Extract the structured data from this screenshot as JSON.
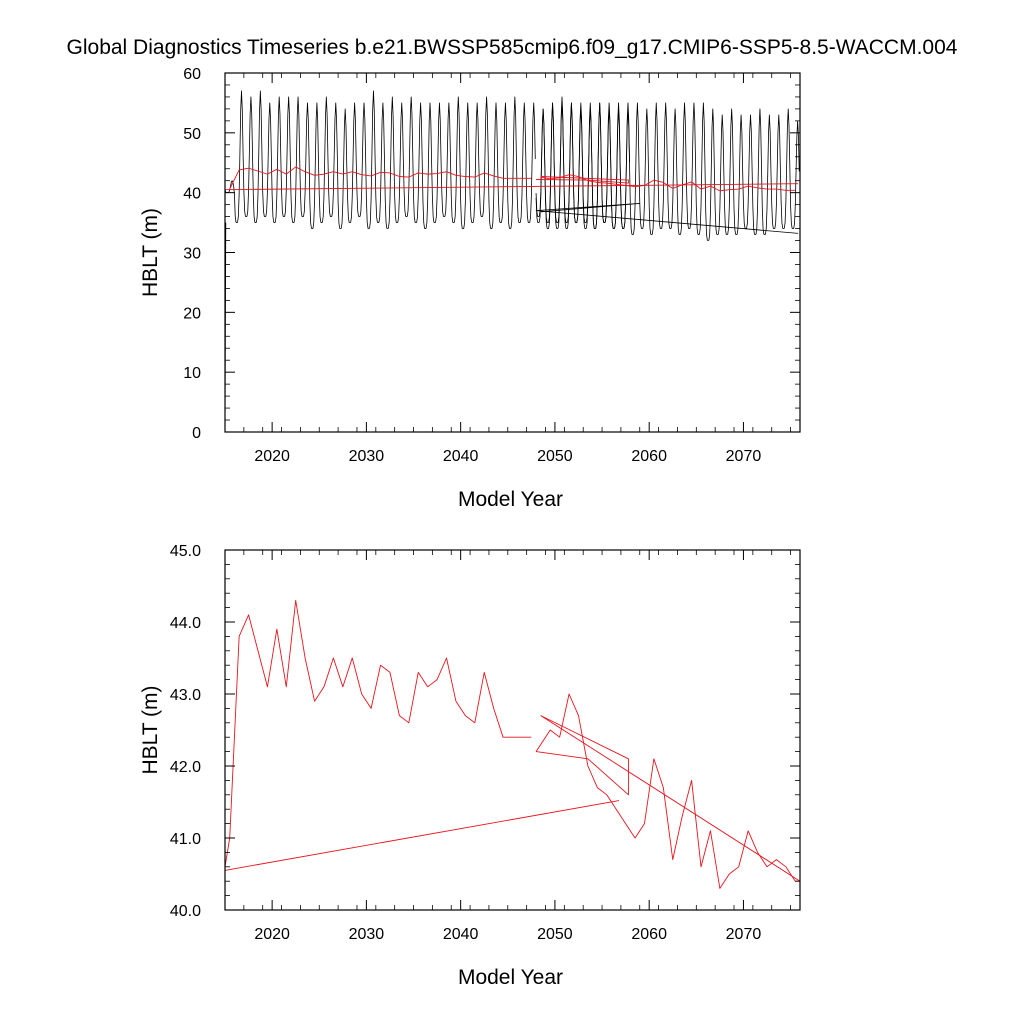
{
  "title": "Global Diagnostics Timeseries b.e21.BWSSP585cmip6.f09_g17.CMIP6-SSP5-8.5-WACCM.004",
  "colors": {
    "monthly": "#000000",
    "annual": "#e8141e",
    "axis": "#000000"
  },
  "chart_data": [
    {
      "type": "line",
      "xlabel": "Model Year",
      "ylabel": "HBLT (m)",
      "xlim": [
        2015,
        2076
      ],
      "ylim": [
        0,
        60
      ],
      "x_ticks": [
        2020,
        2030,
        2040,
        2050,
        2060,
        2070
      ],
      "x_tick_labels": [
        "2020",
        "2030",
        "2040",
        "2050",
        "2060",
        "2070"
      ],
      "y_ticks": [
        0,
        10,
        20,
        30,
        40,
        50,
        60
      ],
      "y_tick_labels": [
        "0",
        "10",
        "20",
        "30",
        "40",
        "50",
        "60"
      ],
      "grid": false,
      "series": [
        {
          "style": "monthly",
          "segments": [
            {
              "x_start": 2015.0,
              "x_step": 0.0833,
              "values": [
                0,
                35.0
              ]
            },
            {
              "x_start": 2015.0,
              "x_step": 0.0833,
              "values_pattern": "seasonal",
              "first_year": 2015,
              "last_year": 2047,
              "annual_max": [
                42,
                57,
                56,
                57,
                55,
                56,
                56,
                56,
                55,
                55,
                56,
                55,
                54,
                55,
                55,
                57,
                55,
                56,
                55,
                56,
                55,
                55,
                55,
                55,
                56,
                55,
                55,
                56,
                55,
                55,
                56,
                55,
                55
              ],
              "annual_min": [
                40,
                35,
                36,
                35,
                36,
                35,
                36,
                35,
                36,
                34,
                35,
                36,
                34,
                35,
                36,
                34,
                35,
                34,
                35,
                36,
                35,
                34,
                35,
                36,
                35,
                34,
                35,
                36,
                34,
                35,
                34,
                35,
                35
              ]
            },
            {
              "x_start": 2048.0,
              "x_step": 0.0833,
              "values_pattern": "seasonal",
              "first_year": 2048,
              "last_year": 2057,
              "annual_max": [
                54,
                55,
                56,
                55,
                55,
                54,
                55,
                55,
                54,
                55
              ],
              "annual_min": [
                36,
                35,
                34,
                35,
                35,
                35,
                34,
                35,
                34,
                34
              ]
            },
            {
              "x_start": 2048.0,
              "x_step": 0.0833,
              "values_pattern": "seasonal",
              "first_year": 2048,
              "last_year": 2075,
              "annual_max": [
                54,
                55,
                55,
                55,
                54,
                55,
                55,
                54,
                55,
                54,
                55,
                54,
                55,
                55,
                54,
                55,
                55,
                55,
                54,
                53,
                54,
                53,
                53,
                54,
                53,
                53,
                54,
                52
              ],
              "annual_min": [
                35,
                34,
                35,
                34,
                35,
                34,
                34,
                35,
                34,
                34,
                33,
                34,
                33,
                34,
                34,
                33,
                34,
                33,
                32,
                33,
                33,
                33,
                34,
                33,
                33,
                34,
                34,
                34
              ]
            },
            {
              "x": [
                2048.5,
                2059.0,
                2048.0,
                2075.8
              ],
              "y": [
                36.8,
                38.2,
                37.0,
                33.2
              ]
            }
          ]
        },
        {
          "style": "annual",
          "segments": [
            {
              "x": [
                2015.0,
                2075.8
              ],
              "y": [
                40.5,
                41.5
              ]
            },
            {
              "x": [
                2015.5,
                2016.5,
                2017.5,
                2018.5,
                2019.5,
                2020.5,
                2021.5,
                2022.5,
                2023.5,
                2024.5,
                2025.5,
                2026.5,
                2027.5,
                2028.5,
                2029.5,
                2030.5,
                2031.5,
                2032.5,
                2033.5,
                2034.5,
                2035.5,
                2036.5,
                2037.5,
                2038.5,
                2039.5,
                2040.5,
                2041.5,
                2042.5,
                2043.5,
                2044.5,
                2045.5,
                2046.5,
                2047.5
              ],
              "y": [
                40.6,
                43.8,
                44.1,
                43.6,
                43.1,
                43.9,
                43.1,
                44.3,
                43.5,
                42.9,
                43.1,
                43.5,
                43.1,
                43.5,
                43.0,
                42.8,
                43.4,
                43.3,
                42.7,
                42.6,
                43.3,
                43.1,
                43.2,
                43.5,
                42.9,
                42.7,
                42.6,
                43.3,
                42.8,
                42.4,
                42.4,
                42.4,
                42.4
              ]
            },
            {
              "x": [
                2048.5,
                2057.8,
                2057.8,
                2053.5,
                2048.0
              ],
              "y": [
                42.7,
                42.1,
                41.6,
                42.1,
                42.2
              ]
            },
            {
              "x": [
                2048.5,
                2049.5,
                2050.5,
                2051.5,
                2052.5,
                2053.5,
                2054.5,
                2055.5,
                2056.5,
                2057.5,
                2058.5,
                2059.5,
                2060.5,
                2061.5,
                2062.5,
                2063.5,
                2064.5,
                2065.5,
                2066.5,
                2067.5,
                2068.5,
                2069.5,
                2070.5,
                2071.5,
                2072.5,
                2073.5,
                2074.5,
                2075.5
              ],
              "y": [
                42.6,
                42.3,
                42.5,
                43.0,
                42.7,
                42.0,
                41.7,
                41.6,
                41.4,
                41.2,
                41.0,
                41.2,
                42.1,
                41.7,
                40.7,
                41.3,
                41.8,
                40.6,
                41.1,
                40.3,
                40.5,
                40.6,
                41.1,
                40.8,
                40.6,
                40.6,
                40.4,
                40.4
              ]
            }
          ]
        }
      ]
    },
    {
      "type": "line",
      "xlabel": "Model Year",
      "ylabel": "HBLT (m)",
      "xlim": [
        2015,
        2076
      ],
      "ylim": [
        40.0,
        45.0
      ],
      "x_ticks": [
        2020,
        2030,
        2040,
        2050,
        2060,
        2070
      ],
      "x_tick_labels": [
        "2020",
        "2030",
        "2040",
        "2050",
        "2060",
        "2070"
      ],
      "y_ticks": [
        40.0,
        41.0,
        42.0,
        43.0,
        44.0,
        45.0
      ],
      "y_tick_labels": [
        "40.0",
        "41.0",
        "42.0",
        "43.0",
        "44.0",
        "45.0"
      ],
      "grid": false,
      "series": [
        {
          "style": "annual",
          "segments": [
            {
              "x": [
                2015.0,
                2015.5,
                2016.5,
                2017.5,
                2018.5,
                2019.5,
                2020.5,
                2021.5,
                2022.5,
                2023.5,
                2024.5,
                2025.5,
                2026.5,
                2027.5,
                2028.5,
                2029.5,
                2030.5,
                2031.5,
                2032.5,
                2033.5,
                2034.5,
                2035.5,
                2036.5,
                2037.5,
                2038.5,
                2039.5,
                2040.5,
                2041.5,
                2042.5,
                2043.5,
                2044.5,
                2045.5,
                2046.5,
                2047.5
              ],
              "y": [
                40.6,
                41.0,
                43.8,
                44.1,
                43.6,
                43.1,
                43.9,
                43.1,
                44.3,
                43.5,
                42.9,
                43.1,
                43.5,
                43.1,
                43.5,
                43.0,
                42.8,
                43.4,
                43.3,
                42.7,
                42.6,
                43.3,
                43.1,
                43.2,
                43.5,
                42.9,
                42.7,
                42.6,
                43.3,
                42.8,
                42.4,
                42.4,
                42.4,
                42.4
              ]
            },
            {
              "x": [
                2015.0,
                2056.8
              ],
              "y": [
                40.55,
                41.52
              ]
            },
            {
              "x": [
                2048.5,
                2057.8,
                2057.8,
                2053.5,
                2048.0
              ],
              "y": [
                42.7,
                42.1,
                41.6,
                42.1,
                42.2
              ]
            },
            {
              "x": [
                2048.0,
                2049.5,
                2050.5,
                2051.5,
                2052.5,
                2053.5,
                2054.5,
                2055.5,
                2056.5,
                2057.5,
                2058.5,
                2059.5,
                2060.5,
                2061.5,
                2062.5,
                2063.5,
                2064.5,
                2065.5,
                2066.5,
                2067.5,
                2068.5,
                2069.5,
                2070.5,
                2071.5,
                2072.5,
                2073.5,
                2074.5,
                2075.5,
                2076.0
              ],
              "y": [
                42.2,
                42.5,
                42.4,
                43.0,
                42.7,
                42.0,
                41.7,
                41.6,
                41.4,
                41.2,
                41.0,
                41.2,
                42.1,
                41.7,
                40.7,
                41.3,
                41.8,
                40.6,
                41.1,
                40.3,
                40.5,
                40.6,
                41.1,
                40.8,
                40.6,
                40.7,
                40.6,
                40.4,
                40.4
              ]
            },
            {
              "x": [
                2048.5,
                2076.0
              ],
              "y": [
                42.7,
                40.4
              ]
            }
          ]
        }
      ]
    }
  ]
}
